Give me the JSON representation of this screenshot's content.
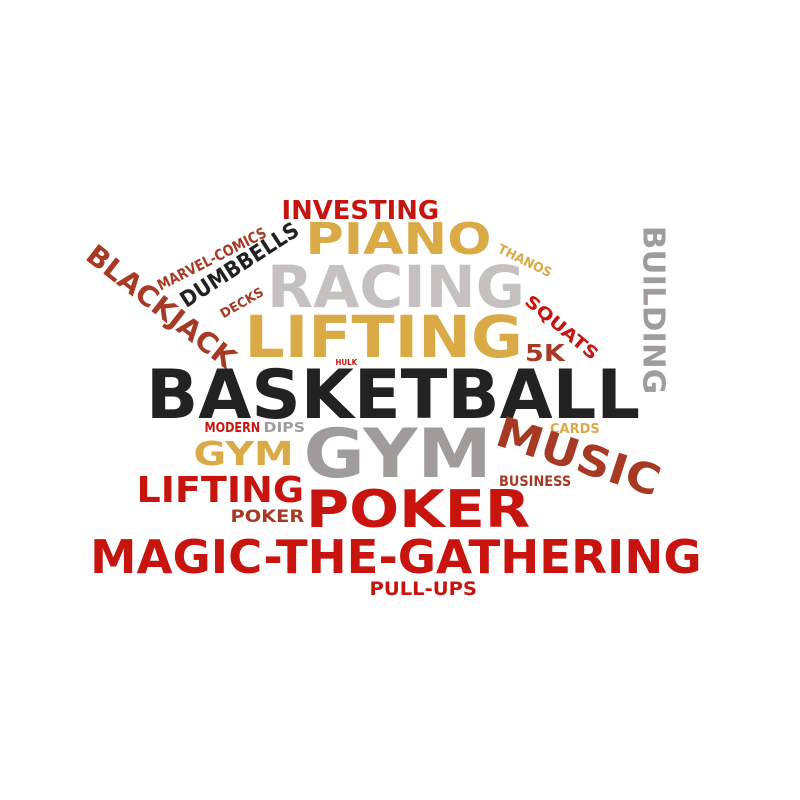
{
  "palette": {
    "red": "#c8140e",
    "maroon": "#a63a24",
    "gold": "#d9aa45",
    "gray": "#a09c9c",
    "lightgray": "#c4c1c0",
    "black": "#222222"
  },
  "words": [
    {
      "text": "INVESTING",
      "color": "#c8140e"
    },
    {
      "text": "PIANO",
      "color": "#d9aa45"
    },
    {
      "text": "MARVEL-COMICS",
      "color": "#a63a24"
    },
    {
      "text": "DUMBBELLS",
      "color": "#222222"
    },
    {
      "text": "THANOS",
      "color": "#d9aa45"
    },
    {
      "text": "BUILDING",
      "color": "#a09c9c"
    },
    {
      "text": "BLACKJACK",
      "color": "#a63a24"
    },
    {
      "text": "RACING",
      "color": "#c4c1c0"
    },
    {
      "text": "DECKS",
      "color": "#a63a24"
    },
    {
      "text": "SQUATS",
      "color": "#c8140e"
    },
    {
      "text": "LIFTING",
      "color": "#d9aa45"
    },
    {
      "text": "5K",
      "color": "#a63a24"
    },
    {
      "text": "HULK",
      "color": "#c8140e"
    },
    {
      "text": "BASKETBALL",
      "color": "#222222"
    },
    {
      "text": "MODERN",
      "color": "#c8140e"
    },
    {
      "text": "DIPS",
      "color": "#a09c9c"
    },
    {
      "text": "GYM",
      "color": "#d9aa45"
    },
    {
      "text": "GYM",
      "color": "#a09c9c"
    },
    {
      "text": "CARDS",
      "color": "#d9aa45"
    },
    {
      "text": "MUSIC",
      "color": "#a63a24"
    },
    {
      "text": "BUSINESS",
      "color": "#a63a24"
    },
    {
      "text": "LIFTING",
      "color": "#c8140e"
    },
    {
      "text": "POKER",
      "color": "#a63a24"
    },
    {
      "text": "POKER",
      "color": "#c8140e"
    },
    {
      "text": "MAGIC-THE-GATHERING",
      "color": "#c8140e"
    },
    {
      "text": "PULL-UPS",
      "color": "#c8140e"
    }
  ]
}
